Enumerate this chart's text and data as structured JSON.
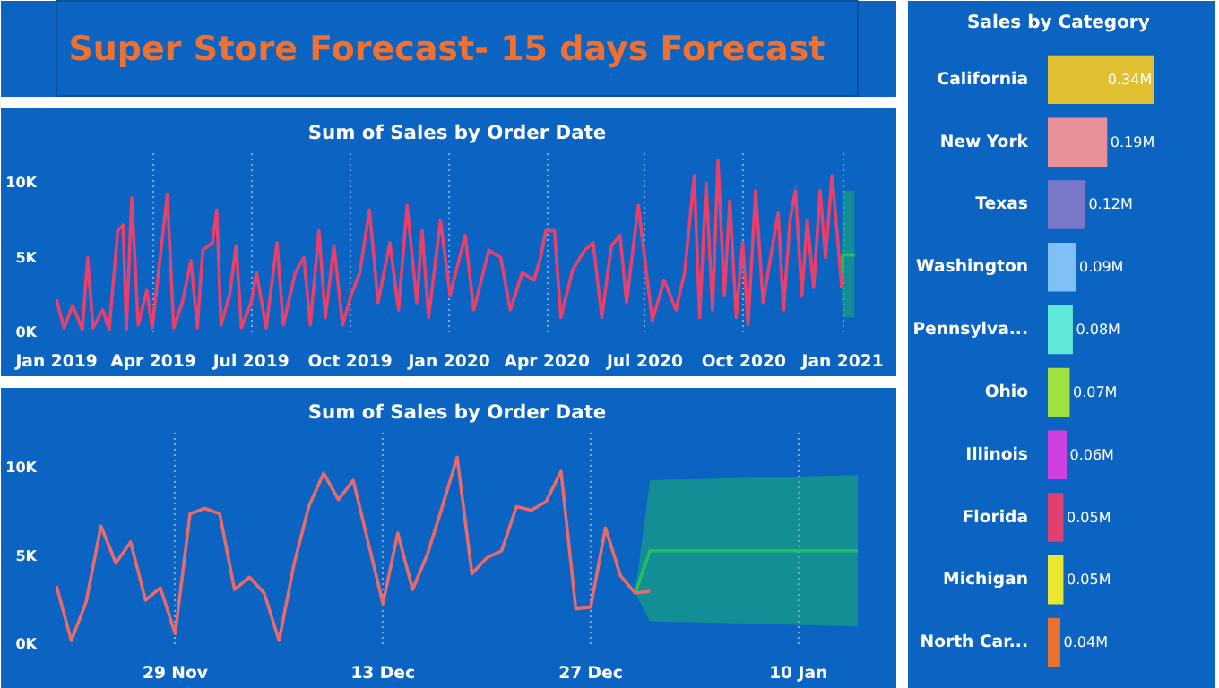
{
  "chart_data": [
    {
      "type": "other",
      "title": "Super Store Forecast- 15 days Forecast"
    },
    {
      "type": "line",
      "title": "Sum of Sales by Order Date",
      "xlim": [
        "2019-01-01",
        "2021-01-15"
      ],
      "ylim": [
        0,
        12000
      ],
      "xticks": [
        {
          "value": "2019-01-01",
          "label": "Jan 2019"
        },
        {
          "value": "2019-04-01",
          "label": "Apr 2019"
        },
        {
          "value": "2019-07-01",
          "label": "Jul 2019"
        },
        {
          "value": "2019-10-01",
          "label": "Oct 2019"
        },
        {
          "value": "2020-01-01",
          "label": "Jan 2020"
        },
        {
          "value": "2020-04-01",
          "label": "Apr 2020"
        },
        {
          "value": "2020-07-01",
          "label": "Jul 2020"
        },
        {
          "value": "2020-10-01",
          "label": "Oct 2020"
        },
        {
          "value": "2021-01-01",
          "label": "Jan 2021"
        }
      ],
      "yticks": [
        {
          "value": 0,
          "label": "0K"
        },
        {
          "value": 5000,
          "label": "5K"
        },
        {
          "value": 10000,
          "label": "10K"
        }
      ],
      "grid": "x",
      "series": [
        {
          "color": "#e8406a",
          "x": [
            "2019-01-01",
            "2019-01-08",
            "2019-01-16",
            "2019-01-25",
            "2019-01-30",
            "2019-02-04",
            "2019-02-13",
            "2019-02-19",
            "2019-02-27",
            "2019-03-04",
            "2019-03-07",
            "2019-03-12",
            "2019-03-18",
            "2019-03-26",
            "2019-03-31",
            "2019-04-14",
            "2019-04-20",
            "2019-04-28",
            "2019-05-06",
            "2019-05-12",
            "2019-05-17",
            "2019-05-26",
            "2019-05-30",
            "2019-06-03",
            "2019-06-11",
            "2019-06-17",
            "2019-06-22",
            "2019-07-01",
            "2019-07-06",
            "2019-07-15",
            "2019-07-25",
            "2019-07-31",
            "2019-08-11",
            "2019-08-19",
            "2019-08-25",
            "2019-09-02",
            "2019-09-08",
            "2019-09-16",
            "2019-09-24",
            "2019-10-02",
            "2019-10-10",
            "2019-10-19",
            "2019-10-27",
            "2019-11-07",
            "2019-11-15",
            "2019-11-23",
            "2019-12-02",
            "2019-12-07",
            "2019-12-13",
            "2019-12-24",
            "2020-01-02",
            "2020-01-16",
            "2020-01-24",
            "2020-02-07",
            "2020-02-18",
            "2020-02-27",
            "2020-03-09",
            "2020-03-20",
            "2020-03-26",
            "2020-03-31",
            "2020-04-08",
            "2020-04-14",
            "2020-04-25",
            "2020-05-06",
            "2020-05-14",
            "2020-05-22",
            "2020-05-31",
            "2020-06-08",
            "2020-06-14",
            "2020-06-25",
            "2020-06-30",
            "2020-07-08",
            "2020-07-19",
            "2020-07-30",
            "2020-08-07",
            "2020-08-16",
            "2020-08-21",
            "2020-08-27",
            "2020-09-02",
            "2020-09-07",
            "2020-09-13",
            "2020-09-18",
            "2020-09-24",
            "2020-09-30",
            "2020-10-05",
            "2020-10-12",
            "2020-10-19",
            "2020-10-27",
            "2020-11-02",
            "2020-11-07",
            "2020-11-13",
            "2020-11-18",
            "2020-11-24",
            "2020-11-29",
            "2020-12-05",
            "2020-12-11",
            "2020-12-16",
            "2020-12-22",
            "2020-12-27",
            "2020-12-31"
          ],
          "values": [
            2200,
            300,
            1800,
            200,
            5000,
            300,
            1500,
            200,
            6800,
            7200,
            200,
            9000,
            500,
            2800,
            300,
            9200,
            300,
            2000,
            4800,
            300,
            5500,
            6000,
            8200,
            500,
            2500,
            5800,
            300,
            2000,
            4000,
            300,
            6000,
            500,
            4000,
            5000,
            500,
            6800,
            1000,
            5800,
            500,
            2500,
            4000,
            8200,
            2000,
            6000,
            1500,
            8500,
            2000,
            6800,
            1000,
            7500,
            2500,
            6500,
            1500,
            5500,
            5000,
            1500,
            4000,
            3500,
            5000,
            6800,
            6800,
            1000,
            4200,
            5500,
            6000,
            1000,
            5800,
            6500,
            2000,
            8500,
            5500,
            800,
            3500,
            1500,
            4000,
            10500,
            1000,
            10000,
            1500,
            11500,
            2500,
            8800,
            1000,
            6000,
            500,
            9500,
            2000,
            5500,
            8000,
            1500,
            7500,
            9500,
            2500,
            7500,
            3000,
            9500,
            5000,
            10500,
            6500,
            3000
          ]
        },
        {
          "type": "line",
          "color": "#20c060",
          "x": [
            "2020-12-31",
            "2021-01-01",
            "2021-01-12"
          ],
          "values": [
            3000,
            5200,
            5200
          ],
          "lower": [
            3000,
            1000,
            1000
          ],
          "upper": [
            3000,
            9500,
            9500
          ]
        }
      ]
    },
    {
      "type": "line",
      "title": "Sum of Sales by Order Date",
      "xlim": [
        "2020-11-21",
        "2021-01-14"
      ],
      "ylim": [
        0,
        12000
      ],
      "xticks": [
        {
          "value": "2020-11-29",
          "label": "29 Nov"
        },
        {
          "value": "2020-12-13",
          "label": "13 Dec"
        },
        {
          "value": "2020-12-27",
          "label": "27 Dec"
        },
        {
          "value": "2021-01-10",
          "label": "10 Jan"
        }
      ],
      "yticks": [
        {
          "value": 0,
          "label": "0K"
        },
        {
          "value": 5000,
          "label": "5K"
        },
        {
          "value": 10000,
          "label": "10K"
        }
      ],
      "grid": "x",
      "series": [
        {
          "color": "#e86a6a",
          "x": [
            "2020-11-21",
            "2020-11-22",
            "2020-11-23",
            "2020-11-24",
            "2020-11-25",
            "2020-11-26",
            "2020-11-27",
            "2020-11-28",
            "2020-11-29",
            "2020-11-30",
            "2020-12-01",
            "2020-12-02",
            "2020-12-03",
            "2020-12-04",
            "2020-12-05",
            "2020-12-06",
            "2020-12-07",
            "2020-12-08",
            "2020-12-09",
            "2020-12-10",
            "2020-12-11",
            "2020-12-12",
            "2020-12-13",
            "2020-12-14",
            "2020-12-15",
            "2020-12-16",
            "2020-12-17",
            "2020-12-18",
            "2020-12-19",
            "2020-12-20",
            "2020-12-21",
            "2020-12-22",
            "2020-12-23",
            "2020-12-24",
            "2020-12-25",
            "2020-12-26",
            "2020-12-27",
            "2020-12-28",
            "2020-12-29",
            "2020-12-30",
            "2020-12-31"
          ],
          "values": [
            3300,
            200,
            2400,
            6700,
            4600,
            5800,
            2500,
            3200,
            600,
            7400,
            7700,
            7400,
            3100,
            3800,
            2900,
            200,
            4500,
            7800,
            9700,
            8200,
            9300,
            5800,
            2300,
            6300,
            3100,
            5100,
            7800,
            10600,
            4000,
            4900,
            5300,
            7800,
            7600,
            8100,
            9800,
            2000,
            2100,
            6600,
            3900,
            2900,
            3000
          ]
        },
        {
          "type": "line",
          "color": "#20c060",
          "x": [
            "2020-12-30",
            "2020-12-31",
            "2021-01-14"
          ],
          "values": [
            2900,
            5300,
            5300
          ],
          "lower": [
            2900,
            1300,
            1000
          ],
          "upper": [
            2900,
            9300,
            9600
          ]
        }
      ]
    },
    {
      "type": "bar",
      "title": "Sales by Category",
      "orientation": "horizontal",
      "tick_labels": "y",
      "categories": [
        "California",
        "New York",
        "Texas",
        "Washington",
        "Pennsylva...",
        "Ohio",
        "Illinois",
        "Florida",
        "Michigan",
        "North Car..."
      ],
      "values": [
        0.34,
        0.19,
        0.12,
        0.09,
        0.08,
        0.07,
        0.06,
        0.05,
        0.05,
        0.04
      ],
      "value_labels": [
        "0.34M",
        "0.19M",
        "0.12M",
        "0.09M",
        "0.08M",
        "0.07M",
        "0.06M",
        "0.05M",
        "0.05M",
        "0.04M"
      ],
      "colors": [
        "#e0c030",
        "#e89098",
        "#7a78c8",
        "#80c0f8",
        "#60e8d8",
        "#a0e040",
        "#d040e0",
        "#e04070",
        "#e8e830",
        "#e87030"
      ]
    }
  ]
}
